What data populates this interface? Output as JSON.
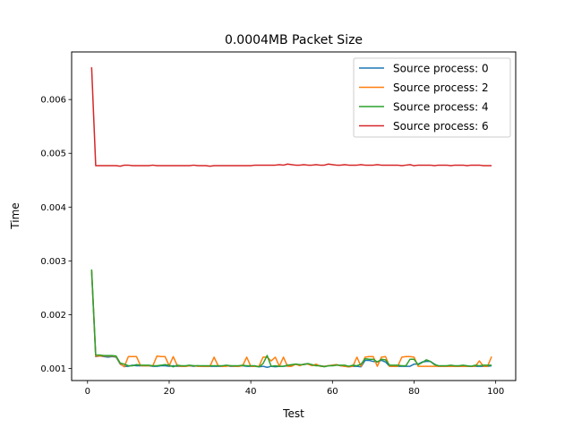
{
  "chart_data": {
    "type": "line",
    "title": "0.0004MB Packet Size",
    "xlabel": "Test",
    "ylabel": "Time",
    "xlim": [
      -3.9,
      104.9
    ],
    "ylim": [
      0.000775,
      0.006885
    ],
    "xticks": [
      0,
      20,
      40,
      60,
      80,
      100
    ],
    "xtick_labels": [
      "0",
      "20",
      "40",
      "60",
      "80",
      "100"
    ],
    "yticks": [
      0.001,
      0.002,
      0.003,
      0.004,
      0.005,
      0.006
    ],
    "ytick_labels": [
      "0.001",
      "0.002",
      "0.003",
      "0.004",
      "0.005",
      "0.006"
    ],
    "grid": false,
    "legend_position": "top-right",
    "x": [
      1,
      2,
      3,
      4,
      5,
      6,
      7,
      8,
      9,
      10,
      11,
      12,
      13,
      14,
      15,
      16,
      17,
      18,
      19,
      20,
      21,
      22,
      23,
      24,
      25,
      26,
      27,
      28,
      29,
      30,
      31,
      32,
      33,
      34,
      35,
      36,
      37,
      38,
      39,
      40,
      41,
      42,
      43,
      44,
      45,
      46,
      47,
      48,
      49,
      50,
      51,
      52,
      53,
      54,
      55,
      56,
      57,
      58,
      59,
      60,
      61,
      62,
      63,
      64,
      65,
      66,
      67,
      68,
      69,
      70,
      71,
      72,
      73,
      74,
      75,
      76,
      77,
      78,
      79,
      80,
      81,
      82,
      83,
      84,
      85,
      86,
      87,
      88,
      89,
      90,
      91,
      92,
      93,
      94,
      95,
      96,
      97,
      98,
      99
    ],
    "series": [
      {
        "name": "Source process: 0",
        "color": "#1f77b4",
        "values": [
          0.0028,
          0.00122,
          0.00123,
          0.00122,
          0.00121,
          0.00122,
          0.00121,
          0.00108,
          0.00104,
          0.00104,
          0.00106,
          0.00105,
          0.00105,
          0.00105,
          0.00105,
          0.00104,
          0.00104,
          0.00105,
          0.00105,
          0.00104,
          0.00105,
          0.00104,
          0.00104,
          0.00104,
          0.00105,
          0.00104,
          0.00105,
          0.00104,
          0.00104,
          0.00104,
          0.00104,
          0.00104,
          0.00104,
          0.00105,
          0.00104,
          0.00104,
          0.00104,
          0.00105,
          0.00104,
          0.00104,
          0.00104,
          0.00103,
          0.00104,
          0.00102,
          0.00104,
          0.00103,
          0.00104,
          0.00104,
          0.00105,
          0.00106,
          0.00108,
          0.00106,
          0.00108,
          0.00109,
          0.00106,
          0.00106,
          0.00105,
          0.00104,
          0.00105,
          0.00106,
          0.00107,
          0.00105,
          0.00104,
          0.00103,
          0.00104,
          0.00104,
          0.00103,
          0.00115,
          0.00115,
          0.00113,
          0.00112,
          0.00115,
          0.00112,
          0.00104,
          0.00104,
          0.00104,
          0.00104,
          0.00104,
          0.00104,
          0.00108,
          0.00108,
          0.00112,
          0.00113,
          0.00113,
          0.00108,
          0.00104,
          0.00104,
          0.00104,
          0.00104,
          0.00104,
          0.00104,
          0.00104,
          0.00104,
          0.00104,
          0.00104,
          0.00104,
          0.00104,
          0.00104,
          0.00105
        ]
      },
      {
        "name": "Source process: 2",
        "color": "#ff7f0e",
        "values": [
          0.00282,
          0.00123,
          0.00123,
          0.00123,
          0.00123,
          0.00123,
          0.00122,
          0.00109,
          0.00103,
          0.00122,
          0.00122,
          0.00122,
          0.00105,
          0.00105,
          0.00105,
          0.00105,
          0.00123,
          0.00122,
          0.00122,
          0.00105,
          0.00122,
          0.00105,
          0.00104,
          0.00104,
          0.00105,
          0.00105,
          0.00104,
          0.00104,
          0.00104,
          0.00104,
          0.00121,
          0.00105,
          0.00104,
          0.00104,
          0.00105,
          0.00104,
          0.00104,
          0.00105,
          0.00121,
          0.00104,
          0.00104,
          0.00104,
          0.00121,
          0.00121,
          0.00114,
          0.00121,
          0.00104,
          0.00121,
          0.00104,
          0.00104,
          0.00108,
          0.00105,
          0.00108,
          0.00108,
          0.00105,
          0.00108,
          0.00104,
          0.00104,
          0.00105,
          0.00106,
          0.00107,
          0.00105,
          0.00104,
          0.00103,
          0.00104,
          0.00121,
          0.00104,
          0.00121,
          0.00122,
          0.00122,
          0.00104,
          0.00121,
          0.00122,
          0.00104,
          0.00104,
          0.00104,
          0.00121,
          0.00122,
          0.00122,
          0.00121,
          0.00104,
          0.00104,
          0.00104,
          0.00104,
          0.00104,
          0.00104,
          0.00104,
          0.00104,
          0.00104,
          0.00104,
          0.00104,
          0.00104,
          0.00104,
          0.00104,
          0.00104,
          0.00114,
          0.00104,
          0.00104,
          0.00122
        ]
      },
      {
        "name": "Source process: 4",
        "color": "#2ca02c",
        "values": [
          0.00284,
          0.00125,
          0.00125,
          0.00124,
          0.00124,
          0.00124,
          0.00123,
          0.0011,
          0.00108,
          0.00105,
          0.00105,
          0.00107,
          0.00106,
          0.00106,
          0.00106,
          0.00105,
          0.00105,
          0.00106,
          0.00107,
          0.00106,
          0.00103,
          0.00106,
          0.00105,
          0.00105,
          0.00106,
          0.00105,
          0.00105,
          0.00105,
          0.00105,
          0.00105,
          0.00105,
          0.00105,
          0.00105,
          0.00106,
          0.00105,
          0.00105,
          0.00105,
          0.00106,
          0.00105,
          0.00105,
          0.00105,
          0.00103,
          0.00109,
          0.00124,
          0.00104,
          0.00105,
          0.00104,
          0.00104,
          0.00106,
          0.00107,
          0.00108,
          0.00107,
          0.00107,
          0.00109,
          0.00107,
          0.00105,
          0.00105,
          0.00103,
          0.00105,
          0.00105,
          0.00106,
          0.00106,
          0.00106,
          0.00104,
          0.00106,
          0.00105,
          0.00108,
          0.00118,
          0.00117,
          0.00117,
          0.00112,
          0.00117,
          0.00116,
          0.00106,
          0.00106,
          0.00106,
          0.00105,
          0.00105,
          0.00117,
          0.00117,
          0.00107,
          0.00111,
          0.00116,
          0.00113,
          0.00107,
          0.00105,
          0.00105,
          0.00105,
          0.00106,
          0.00105,
          0.00105,
          0.00106,
          0.00105,
          0.00104,
          0.00106,
          0.00105,
          0.00106,
          0.00106,
          0.00106
        ]
      },
      {
        "name": "Source process: 6",
        "color": "#d62728",
        "values": [
          0.0066,
          0.00477,
          0.00477,
          0.00477,
          0.00477,
          0.00477,
          0.00477,
          0.00476,
          0.00478,
          0.00478,
          0.00477,
          0.00477,
          0.00477,
          0.00477,
          0.00477,
          0.00478,
          0.00477,
          0.00477,
          0.00477,
          0.00477,
          0.00477,
          0.00477,
          0.00477,
          0.00477,
          0.00477,
          0.00478,
          0.00477,
          0.00477,
          0.00477,
          0.00476,
          0.00477,
          0.00477,
          0.00477,
          0.00477,
          0.00477,
          0.00477,
          0.00477,
          0.00477,
          0.00477,
          0.00477,
          0.00478,
          0.00478,
          0.00478,
          0.00478,
          0.00478,
          0.00478,
          0.00479,
          0.00478,
          0.0048,
          0.00479,
          0.00478,
          0.00478,
          0.00479,
          0.00478,
          0.00478,
          0.00479,
          0.00478,
          0.00478,
          0.0048,
          0.00479,
          0.00478,
          0.00478,
          0.00479,
          0.00478,
          0.00478,
          0.00478,
          0.00479,
          0.00478,
          0.00478,
          0.00478,
          0.00479,
          0.00478,
          0.00478,
          0.00478,
          0.00478,
          0.00478,
          0.00477,
          0.00478,
          0.00479,
          0.00477,
          0.00478,
          0.00478,
          0.00478,
          0.00478,
          0.00477,
          0.00478,
          0.00478,
          0.00478,
          0.00477,
          0.00478,
          0.00478,
          0.00478,
          0.00477,
          0.00478,
          0.00478,
          0.00478,
          0.00477,
          0.00477,
          0.00477
        ]
      }
    ]
  }
}
